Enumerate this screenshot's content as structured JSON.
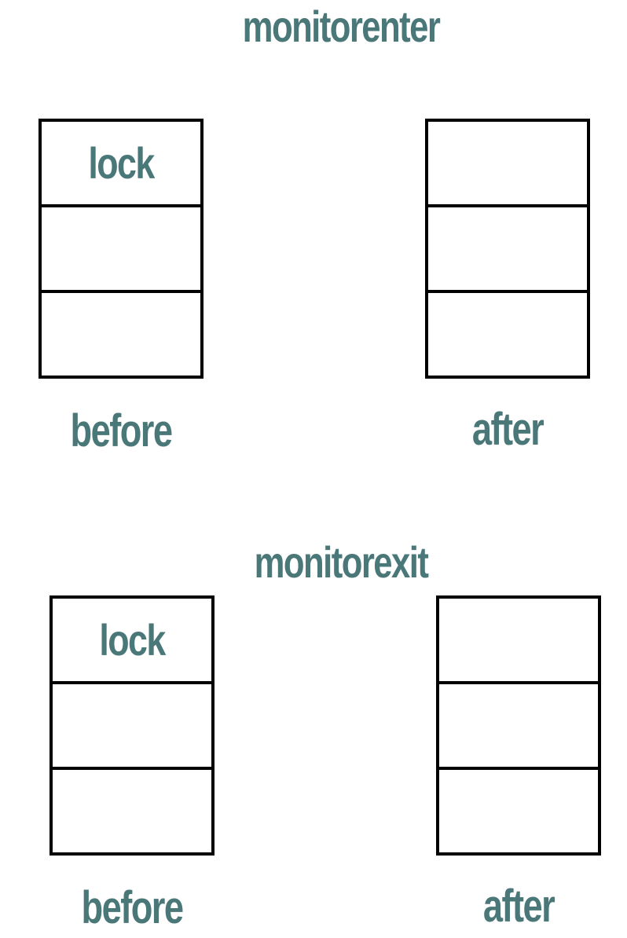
{
  "colors": {
    "text": "#4a7778",
    "border": "#000000",
    "background": "#ffffff"
  },
  "sections": [
    {
      "title": "monitorenter",
      "before": {
        "caption": "before",
        "cells": [
          "lock",
          "",
          ""
        ]
      },
      "after": {
        "caption": "after",
        "cells": [
          "",
          "",
          ""
        ]
      }
    },
    {
      "title": "monitorexit",
      "before": {
        "caption": "before",
        "cells": [
          "lock",
          "",
          ""
        ]
      },
      "after": {
        "caption": "after",
        "cells": [
          "",
          "",
          ""
        ]
      }
    }
  ]
}
